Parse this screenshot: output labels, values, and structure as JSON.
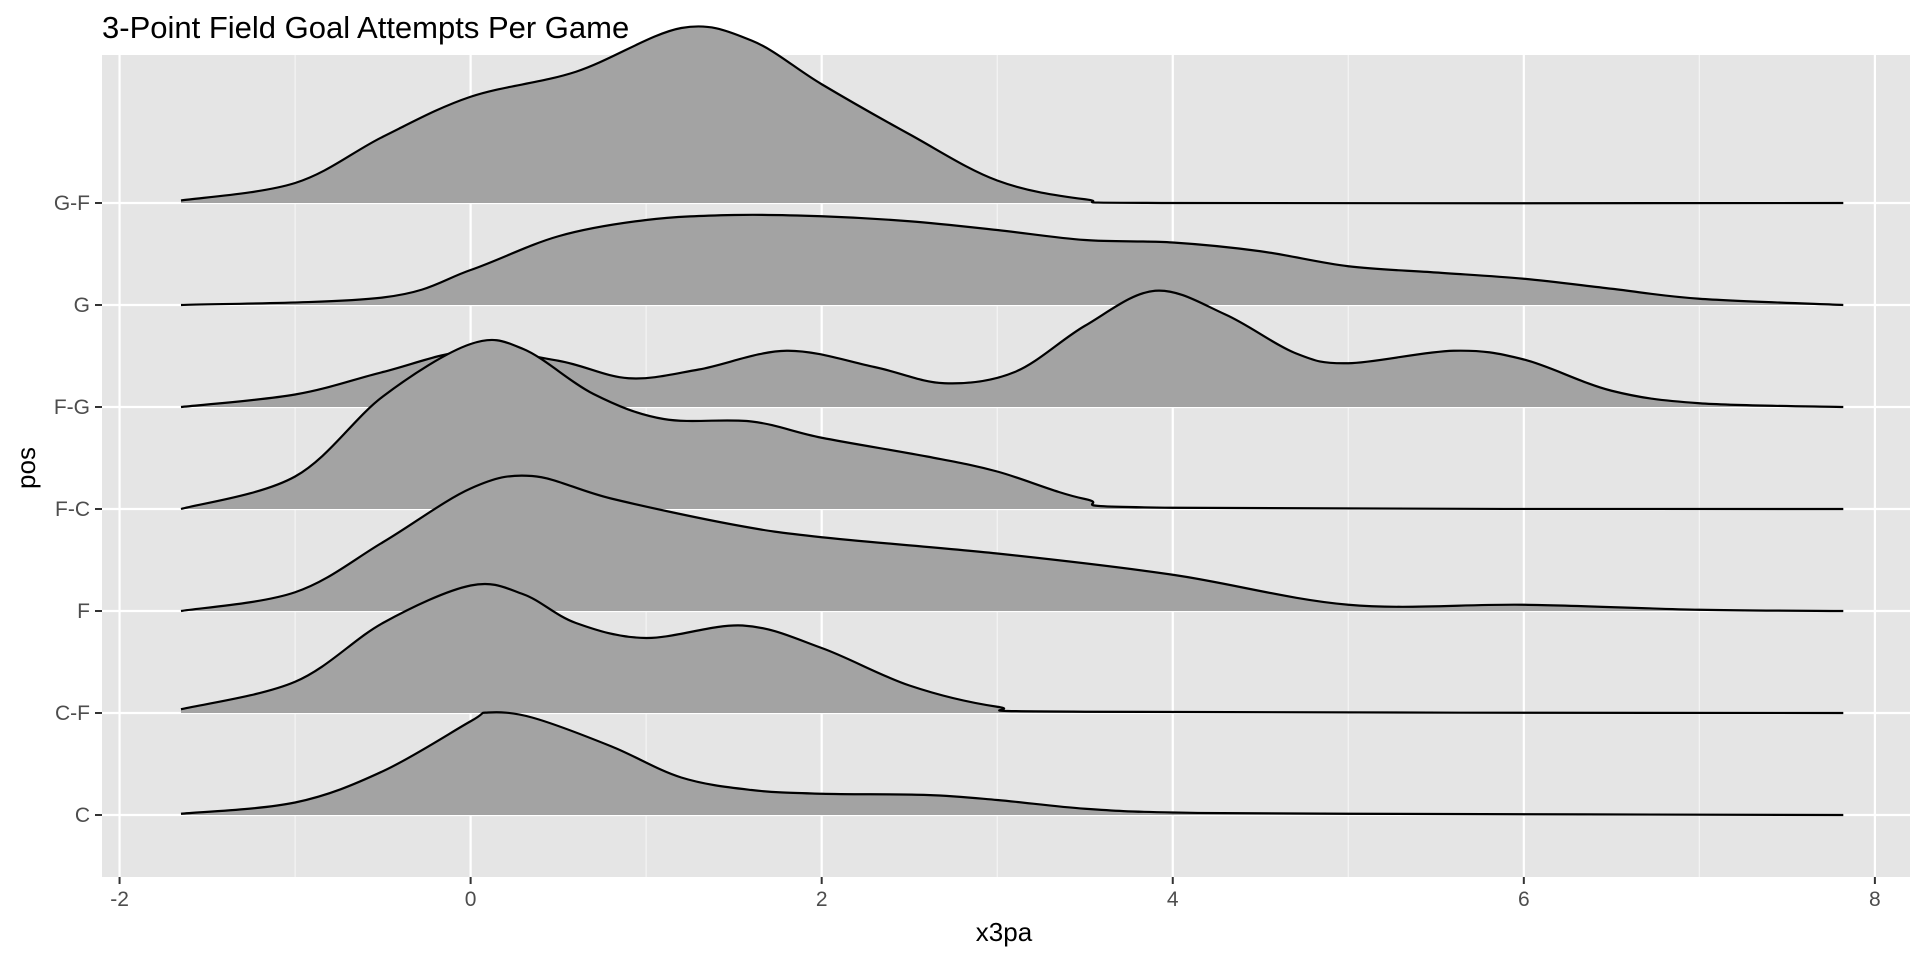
{
  "chart_data": {
    "type": "ridgeline",
    "title": "3-Point Field Goal Attempts Per Game",
    "xlabel": "x3pa",
    "ylabel": "pos",
    "xlim": [
      -2.1,
      8.2
    ],
    "x_ticks": [
      -2,
      0,
      2,
      4,
      6,
      8
    ],
    "x_tick_labels": [
      "-2",
      "0",
      "2",
      "4",
      "6",
      "8"
    ],
    "categories": [
      "C",
      "C-F",
      "F",
      "F-C",
      "F-G",
      "G",
      "G-F"
    ],
    "x_range": [
      -1.65,
      7.82
    ],
    "grid": true,
    "fill_color": "#a3a3a3",
    "panel_color": "#e5e5e5",
    "series": [
      {
        "name": "C",
        "points": [
          [
            -1.65,
            0.01
          ],
          [
            -1.0,
            0.1
          ],
          [
            -0.5,
            0.35
          ],
          [
            0.0,
            0.75
          ],
          [
            0.1,
            0.82
          ],
          [
            0.35,
            0.78
          ],
          [
            0.8,
            0.55
          ],
          [
            1.2,
            0.3
          ],
          [
            1.6,
            0.2
          ],
          [
            2.0,
            0.17
          ],
          [
            2.6,
            0.16
          ],
          [
            3.0,
            0.12
          ],
          [
            3.5,
            0.05
          ],
          [
            4.0,
            0.02
          ],
          [
            5.0,
            0.01
          ],
          [
            7.82,
            0.0
          ]
        ]
      },
      {
        "name": "C-F",
        "points": [
          [
            -1.65,
            0.03
          ],
          [
            -1.0,
            0.25
          ],
          [
            -0.5,
            0.72
          ],
          [
            0.0,
            1.02
          ],
          [
            0.3,
            0.95
          ],
          [
            0.6,
            0.72
          ],
          [
            1.0,
            0.6
          ],
          [
            1.55,
            0.7
          ],
          [
            2.0,
            0.52
          ],
          [
            2.5,
            0.22
          ],
          [
            3.0,
            0.05
          ],
          [
            3.5,
            0.01
          ],
          [
            7.82,
            0.0
          ]
        ]
      },
      {
        "name": "F",
        "points": [
          [
            -1.65,
            0.0
          ],
          [
            -1.0,
            0.15
          ],
          [
            -0.5,
            0.55
          ],
          [
            0.0,
            0.98
          ],
          [
            0.35,
            1.08
          ],
          [
            0.8,
            0.9
          ],
          [
            1.5,
            0.69
          ],
          [
            2.0,
            0.59
          ],
          [
            3.0,
            0.46
          ],
          [
            4.0,
            0.29
          ],
          [
            5.0,
            0.05
          ],
          [
            6.0,
            0.05
          ],
          [
            7.0,
            0.01
          ],
          [
            7.82,
            0.0
          ]
        ]
      },
      {
        "name": "F-C",
        "points": [
          [
            -1.65,
            0.0
          ],
          [
            -1.0,
            0.26
          ],
          [
            -0.5,
            0.9
          ],
          [
            0.0,
            1.32
          ],
          [
            0.3,
            1.28
          ],
          [
            0.7,
            0.92
          ],
          [
            1.1,
            0.72
          ],
          [
            1.6,
            0.7
          ],
          [
            2.0,
            0.57
          ],
          [
            2.6,
            0.42
          ],
          [
            3.0,
            0.3
          ],
          [
            3.5,
            0.08
          ],
          [
            4.0,
            0.01
          ],
          [
            7.82,
            0.0
          ]
        ]
      },
      {
        "name": "F-G",
        "points": [
          [
            -1.65,
            0.0
          ],
          [
            -1.0,
            0.1
          ],
          [
            -0.5,
            0.28
          ],
          [
            0.0,
            0.45
          ],
          [
            0.5,
            0.37
          ],
          [
            0.9,
            0.23
          ],
          [
            1.3,
            0.3
          ],
          [
            1.8,
            0.45
          ],
          [
            2.3,
            0.32
          ],
          [
            2.7,
            0.19
          ],
          [
            3.1,
            0.28
          ],
          [
            3.5,
            0.65
          ],
          [
            3.9,
            0.93
          ],
          [
            4.3,
            0.74
          ],
          [
            4.7,
            0.43
          ],
          [
            5.0,
            0.35
          ],
          [
            5.6,
            0.45
          ],
          [
            6.0,
            0.38
          ],
          [
            6.5,
            0.13
          ],
          [
            7.0,
            0.03
          ],
          [
            7.82,
            0.0
          ]
        ]
      },
      {
        "name": "G",
        "points": [
          [
            -1.65,
            0.0
          ],
          [
            -0.5,
            0.06
          ],
          [
            0.0,
            0.28
          ],
          [
            0.5,
            0.55
          ],
          [
            1.0,
            0.68
          ],
          [
            1.5,
            0.72
          ],
          [
            2.0,
            0.71
          ],
          [
            2.5,
            0.67
          ],
          [
            3.0,
            0.6
          ],
          [
            3.5,
            0.52
          ],
          [
            4.0,
            0.5
          ],
          [
            4.5,
            0.43
          ],
          [
            5.0,
            0.31
          ],
          [
            5.5,
            0.26
          ],
          [
            6.0,
            0.21
          ],
          [
            6.5,
            0.13
          ],
          [
            7.0,
            0.05
          ],
          [
            7.82,
            0.0
          ]
        ]
      },
      {
        "name": "G-F",
        "points": [
          [
            -1.65,
            0.02
          ],
          [
            -1.0,
            0.16
          ],
          [
            -0.5,
            0.53
          ],
          [
            0.0,
            0.85
          ],
          [
            0.6,
            1.05
          ],
          [
            1.2,
            1.4
          ],
          [
            1.6,
            1.3
          ],
          [
            2.0,
            0.95
          ],
          [
            2.5,
            0.55
          ],
          [
            3.0,
            0.18
          ],
          [
            3.5,
            0.03
          ],
          [
            4.0,
            0.0
          ],
          [
            7.82,
            0.0
          ]
        ]
      }
    ]
  }
}
